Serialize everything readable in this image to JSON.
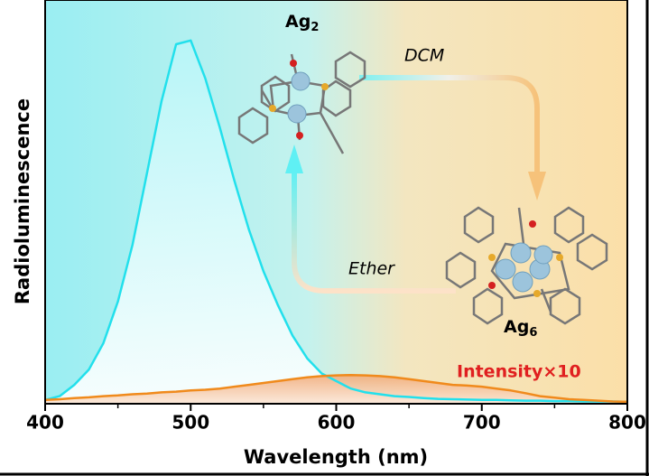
{
  "chart_data": {
    "type": "line",
    "xlabel": "Wavelength (nm)",
    "ylabel": "Radioluminescence",
    "x": [
      400,
      410,
      420,
      430,
      440,
      450,
      460,
      470,
      480,
      490,
      500,
      510,
      520,
      530,
      540,
      550,
      560,
      570,
      580,
      590,
      600,
      610,
      620,
      630,
      640,
      650,
      660,
      670,
      680,
      690,
      700,
      710,
      720,
      730,
      740,
      750,
      760,
      770,
      780,
      790,
      800
    ],
    "series": [
      {
        "color": "#22e0ec",
        "values": [
          0.01,
          0.02,
          0.05,
          0.09,
          0.16,
          0.27,
          0.42,
          0.61,
          0.8,
          0.95,
          0.96,
          0.86,
          0.73,
          0.59,
          0.46,
          0.35,
          0.26,
          0.18,
          0.12,
          0.08,
          0.06,
          0.04,
          0.03,
          0.025,
          0.02,
          0.018,
          0.015,
          0.013,
          0.012,
          0.011,
          0.01,
          0.01,
          0.009,
          0.008,
          0.008,
          0.007,
          0.007,
          0.006,
          0.006,
          0.006,
          0.005
        ]
      },
      {
        "color": "#f08a1c",
        "values": [
          0.01,
          0.012,
          0.015,
          0.017,
          0.02,
          0.022,
          0.025,
          0.027,
          0.03,
          0.032,
          0.035,
          0.037,
          0.04,
          0.045,
          0.05,
          0.055,
          0.06,
          0.065,
          0.07,
          0.073,
          0.075,
          0.076,
          0.075,
          0.073,
          0.07,
          0.065,
          0.06,
          0.055,
          0.05,
          0.048,
          0.045,
          0.04,
          0.035,
          0.028,
          0.02,
          0.016,
          0.012,
          0.01,
          0.008,
          0.006,
          0.005
        ]
      }
    ],
    "xlim": [
      400,
      800
    ],
    "ylim": [
      0,
      1
    ],
    "xticks": [
      400,
      500,
      600,
      700,
      800
    ],
    "xminorticks": [
      450,
      550,
      650,
      750
    ],
    "annotations": {
      "ag2": {
        "text": "Ag",
        "subscript": "2"
      },
      "ag6": {
        "text": "Ag",
        "subscript": "6"
      },
      "dcm": "DCM",
      "ether": "Ether",
      "intensity": "Intensity×10"
    }
  }
}
